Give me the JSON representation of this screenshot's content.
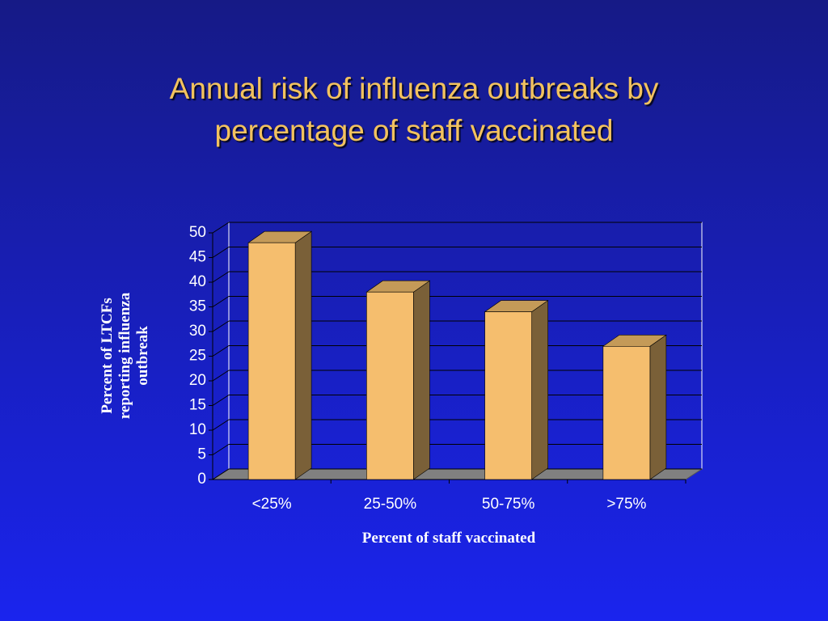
{
  "chart_data": {
    "type": "bar3d",
    "title": [
      "Annual risk of influenza outbreaks by",
      "percentage of staff vaccinated"
    ],
    "ylabel": [
      "Percent of LTCFs",
      "reporting influenza",
      "outbreak"
    ],
    "xlabel": "Percent of staff vaccinated",
    "categories": [
      "<25%",
      "25-50%",
      "50-75%",
      ">75%"
    ],
    "values": [
      48,
      38,
      34,
      27
    ],
    "color": "#f5be6e",
    "ylim": [
      0,
      50
    ],
    "yticks": [
      0,
      5,
      10,
      15,
      20,
      25,
      30,
      35,
      40,
      45,
      50
    ],
    "grid": true
  }
}
